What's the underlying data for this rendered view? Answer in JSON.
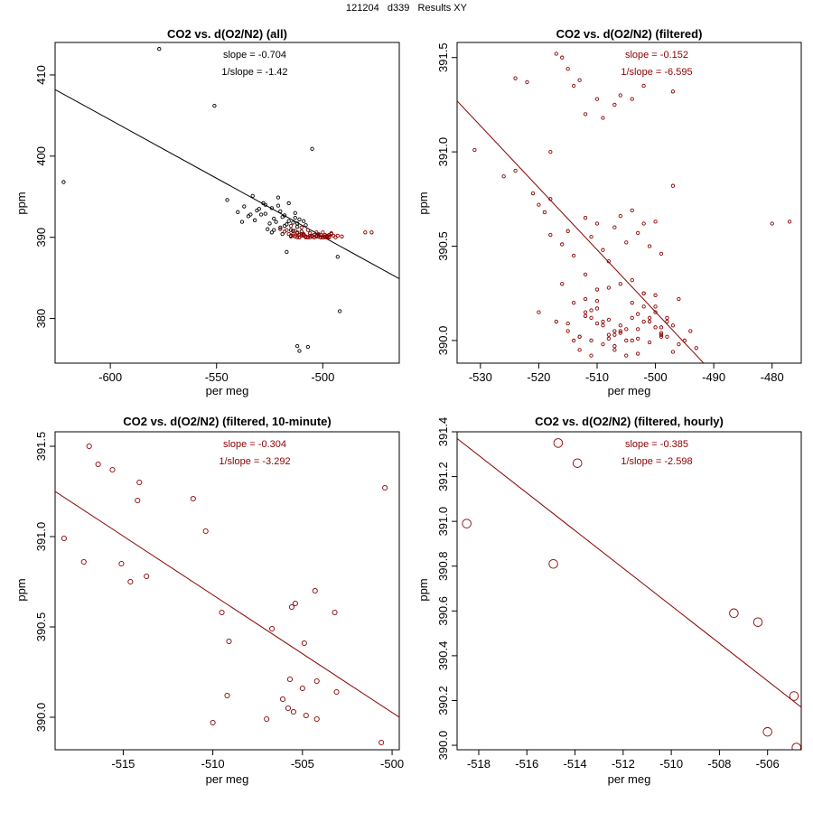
{
  "page_title": "121204   d339   Results XY",
  "colors": {
    "all_points": "#000000",
    "filtered": "#8b0000",
    "axis": "#000000"
  },
  "chart_data": [
    {
      "type": "scatter",
      "title": "CO2 vs. d(O2/N2) (all)",
      "xlabel": "per meg",
      "ylabel": "ppm",
      "xlim": [
        -626,
        -464
      ],
      "ylim": [
        374.5,
        414
      ],
      "xticks": [
        -600,
        -550,
        -500
      ],
      "yticks": [
        380,
        390,
        400,
        410
      ],
      "annotations": [
        "slope = -0.704",
        "1/slope = -1.42"
      ],
      "annotation_color": "#000000",
      "fit": [
        [
          -626,
          408.2
        ],
        [
          -464,
          384.9
        ]
      ],
      "fit_color": "#000000",
      "point_size": "tiny",
      "series": [
        {
          "name": "all",
          "color": "#000000",
          "x": [
            -577,
            -551,
            -622,
            -505,
            -507,
            -512,
            -511,
            -492,
            -493,
            -517,
            -545,
            -540,
            -537,
            -535,
            -532,
            -530,
            -528,
            -527,
            -525,
            -524,
            -523,
            -522,
            -521,
            -520,
            -519,
            -518,
            -516,
            -515,
            -514,
            -513,
            -512,
            -510,
            -508,
            -533,
            -529,
            -526,
            -521,
            -518,
            -516,
            -513,
            -511,
            -524,
            -520,
            -517,
            -514,
            -509,
            -538,
            -534,
            -531,
            -527,
            -523,
            -519,
            -515,
            -512
          ],
          "y": [
            413.2,
            406.2,
            396.8,
            400.9,
            376.5,
            376.6,
            376.0,
            380.9,
            387.6,
            388.2,
            394.6,
            393.1,
            393.8,
            392.6,
            392.1,
            393.5,
            394.2,
            392.9,
            391.7,
            393.6,
            392.3,
            391.9,
            394.9,
            393.2,
            392.5,
            391.4,
            392.0,
            390.9,
            391.8,
            392.4,
            391.3,
            390.7,
            391.5,
            395.1,
            392.8,
            391.0,
            393.9,
            392.7,
            394.2,
            393.0,
            392.2,
            390.6,
            391.2,
            391.6,
            390.8,
            392.0,
            391.9,
            392.8,
            393.3,
            394.0,
            390.9,
            390.4,
            390.2,
            391.7
          ]
        },
        {
          "name": "filtered",
          "color": "#8b0000",
          "x": [
            -520,
            -518,
            -516,
            -515,
            -513,
            -512,
            -511,
            -510,
            -509,
            -508,
            -507,
            -506,
            -505,
            -504,
            -503,
            -502,
            -501,
            -500,
            -499,
            -498,
            -497,
            -496,
            -514,
            -512,
            -510,
            -508,
            -506,
            -504,
            -502,
            -500,
            -498,
            -513,
            -511,
            -509,
            -507,
            -505,
            -503,
            -501,
            -499,
            -497,
            -515,
            -511,
            -507,
            -503,
            -499,
            -495,
            -491,
            -480,
            -477,
            -512,
            -508,
            -504,
            -500,
            -496,
            -510,
            -506,
            -502,
            -498,
            -494,
            -517,
            -514,
            -509,
            -505,
            -501,
            -497,
            -493
          ],
          "y": [
            391.0,
            390.7,
            390.4,
            391.4,
            390.1,
            390.6,
            390.0,
            391.2,
            390.3,
            390.0,
            390.9,
            390.5,
            390.1,
            390.0,
            390.2,
            390.4,
            390.0,
            390.6,
            390.1,
            390.0,
            390.3,
            390.5,
            390.2,
            390.0,
            390.4,
            390.1,
            390.2,
            390.0,
            390.1,
            390.0,
            390.2,
            390.8,
            390.0,
            390.4,
            390.0,
            390.2,
            390.1,
            390.0,
            390.3,
            390.1,
            390.1,
            390.3,
            390.0,
            390.6,
            390.0,
            390.2,
            390.1,
            390.6,
            390.6,
            390.5,
            390.1,
            390.3,
            390.0,
            390.4,
            390.2,
            390.0,
            390.3,
            390.1,
            390.0,
            390.9,
            390.4,
            390.2,
            390.1,
            390.3,
            390.0,
            390.2
          ]
        }
      ]
    },
    {
      "type": "scatter",
      "title": "CO2 vs. d(O2/N2) (filtered)",
      "xlabel": "per meg",
      "ylabel": "ppm",
      "xlim": [
        -534,
        -475
      ],
      "ylim": [
        389.88,
        391.58
      ],
      "xticks": [
        -530,
        -520,
        -510,
        -500,
        -490,
        -480
      ],
      "yticks": [
        390.0,
        390.5,
        391.0,
        391.5
      ],
      "annotations": [
        "slope = -0.152",
        "1/slope = -6.595"
      ],
      "annotation_color": "#8b0000",
      "fit": [
        [
          -534,
          391.27
        ],
        [
          -475,
          389.33
        ]
      ],
      "fit_color": "#8b0000",
      "point_size": "tiny",
      "series": [
        {
          "name": "filtered",
          "color": "#8b0000",
          "x": [
            -531,
            -524,
            -522,
            -518,
            -517,
            -516,
            -515,
            -514,
            -513,
            -512,
            -510,
            -509,
            -507,
            -506,
            -504,
            -502,
            -497,
            -480,
            -477,
            -526,
            -524,
            -521,
            -520,
            -519,
            -518,
            -518,
            -516,
            -515,
            -514,
            -512,
            -511,
            -510,
            -509,
            -508,
            -507,
            -506,
            -505,
            -504,
            -503,
            -502,
            -501,
            -500,
            -499,
            -497,
            -520,
            -517,
            -515,
            -513,
            -511,
            -509,
            -507,
            -505,
            -503,
            -501,
            -499,
            -514,
            -512,
            -510,
            -508,
            -506,
            -504,
            -502,
            -500,
            -498,
            -496,
            -494,
            -513,
            -511,
            -509,
            -507,
            -505,
            -503,
            -501,
            -499,
            -497,
            -495,
            -493,
            -512,
            -510,
            -508,
            -506,
            -504,
            -502,
            -500,
            -498,
            -515,
            -513,
            -511,
            -509,
            -507,
            -505,
            -503,
            -501,
            -499,
            -497,
            -514,
            -512,
            -510,
            -508,
            -506,
            -504,
            -502,
            -500,
            -516,
            -512,
            -508,
            -504,
            -500,
            -496,
            -511,
            -507,
            -503,
            -499,
            -510,
            -506,
            -502,
            -498
          ],
          "y": [
            391.01,
            391.39,
            391.37,
            391.0,
            391.52,
            391.5,
            391.44,
            391.35,
            391.38,
            391.2,
            391.28,
            391.18,
            391.25,
            391.3,
            391.28,
            391.35,
            391.32,
            390.62,
            390.63,
            390.87,
            390.9,
            390.78,
            390.72,
            390.68,
            390.75,
            390.56,
            390.51,
            390.58,
            390.45,
            390.65,
            390.55,
            390.62,
            390.48,
            390.42,
            390.6,
            390.66,
            390.52,
            390.69,
            390.57,
            390.62,
            390.5,
            390.63,
            390.46,
            390.82,
            390.15,
            390.1,
            390.05,
            390.02,
            390.12,
            390.08,
            390.03,
            390.0,
            390.06,
            390.1,
            390.04,
            390.2,
            390.15,
            390.09,
            390.01,
            390.05,
            390.12,
            390.18,
            390.07,
            390.02,
            389.98,
            390.05,
            389.95,
            390.0,
            390.1,
            389.97,
            390.06,
            390.14,
            389.99,
            390.03,
            390.08,
            390.0,
            389.96,
            390.22,
            390.17,
            390.11,
            390.04,
            390.2,
            390.25,
            390.15,
            390.1,
            390.09,
            390.02,
            390.16,
            389.98,
            390.05,
            389.92,
            390.01,
            390.12,
            390.07,
            389.94,
            390.0,
            390.13,
            390.21,
            390.03,
            390.08,
            390.0,
            390.1,
            390.24,
            390.3,
            390.35,
            390.28,
            390.32,
            390.18,
            390.22,
            389.92,
            389.95,
            389.93,
            390.02,
            390.27,
            390.3,
            390.25,
            390.12
          ]
        }
      ]
    },
    {
      "type": "scatter",
      "title": "CO2 vs. d(O2/N2) (filtered, 10-minute)",
      "xlabel": "per meg",
      "ylabel": "ppm",
      "xlim": [
        -518.8,
        -499.6
      ],
      "ylim": [
        389.82,
        391.58
      ],
      "xticks": [
        -515,
        -510,
        -505,
        -500
      ],
      "yticks": [
        390.0,
        390.5,
        391.0,
        391.5
      ],
      "annotations": [
        "slope = -0.304",
        "1/slope = -3.292"
      ],
      "annotation_color": "#8b0000",
      "fit": [
        [
          -518.8,
          391.25
        ],
        [
          -499.6,
          390.0
        ]
      ],
      "fit_color": "#8b0000",
      "point_size": "small",
      "series": [
        {
          "name": "10-minute",
          "color": "#8b0000",
          "x": [
            -516.9,
            -516.4,
            -515.6,
            -514.1,
            -514.2,
            -511.1,
            -510.4,
            -518.3,
            -517.2,
            -515.1,
            -514.6,
            -513.7,
            -509.5,
            -509.1,
            -505.4,
            -505.6,
            -506.7,
            -503.2,
            -504.3,
            -504.9,
            -500.4,
            -509.2,
            -510.0,
            -507.0,
            -506.1,
            -505.8,
            -505.5,
            -504.8,
            -504.2,
            -503.1,
            -505.7,
            -505.0,
            -504.2,
            -500.6
          ],
          "y": [
            391.5,
            391.4,
            391.37,
            391.3,
            391.2,
            391.21,
            391.03,
            390.99,
            390.86,
            390.85,
            390.75,
            390.78,
            390.58,
            390.42,
            390.63,
            390.61,
            390.49,
            390.58,
            390.7,
            390.41,
            391.27,
            390.12,
            389.97,
            389.99,
            390.1,
            390.05,
            390.03,
            390.01,
            389.99,
            390.14,
            390.21,
            390.16,
            390.2,
            389.86
          ]
        }
      ]
    },
    {
      "type": "scatter",
      "title": "CO2 vs. d(O2/N2) (filtered, hourly)",
      "xlabel": "per meg",
      "ylabel": "ppm",
      "xlim": [
        -518.9,
        -504.6
      ],
      "ylim": [
        389.98,
        391.4
      ],
      "xticks": [
        -518,
        -516,
        -514,
        -512,
        -510,
        -508,
        -506
      ],
      "yticks": [
        390.0,
        390.2,
        390.4,
        390.6,
        390.8,
        391.0,
        391.2,
        391.4
      ],
      "annotations": [
        "slope = -0.385",
        "1/slope = -2.598"
      ],
      "annotation_color": "#8b0000",
      "fit": [
        [
          -518.9,
          391.37
        ],
        [
          -504.6,
          390.17
        ]
      ],
      "fit_color": "#8b0000",
      "point_size": "large",
      "series": [
        {
          "name": "hourly",
          "color": "#8b0000",
          "x": [
            -518.5,
            -514.7,
            -513.9,
            -514.9,
            -507.4,
            -506.4,
            -504.9,
            -506.0,
            -504.8
          ],
          "y": [
            390.99,
            391.35,
            391.26,
            390.81,
            390.59,
            390.55,
            390.22,
            390.06,
            389.99
          ]
        }
      ]
    }
  ]
}
